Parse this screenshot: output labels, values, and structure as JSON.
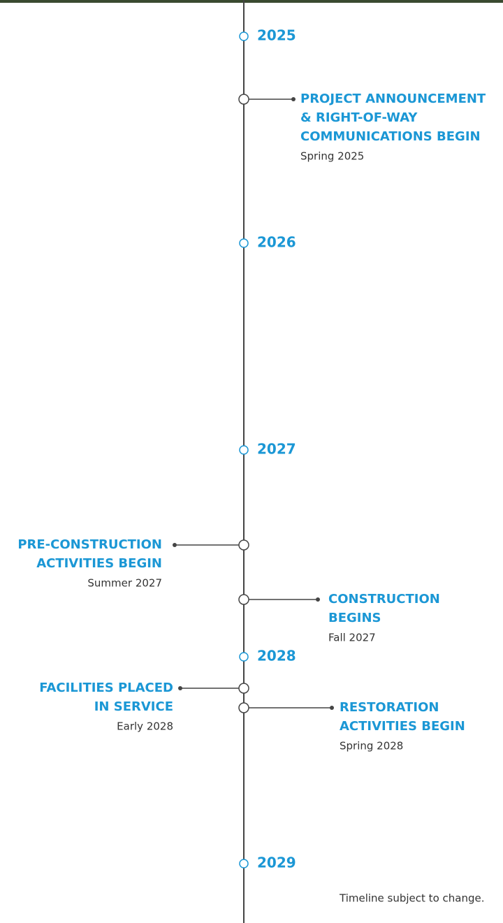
{
  "timeline": {
    "years": [
      "2025",
      "2026",
      "2027",
      "2028",
      "2029"
    ],
    "events": [
      {
        "title": [
          "PROJECT ANNOUNCEMENT",
          "& RIGHT-OF-WAY",
          "COMMUNICATIONS BEGIN"
        ],
        "date": "Spring 2025"
      },
      {
        "title": [
          "PRE-CONSTRUCTION",
          "ACTIVITIES BEGIN"
        ],
        "date": "Summer 2027"
      },
      {
        "title": [
          "CONSTRUCTION",
          "BEGINS"
        ],
        "date": "Fall 2027"
      },
      {
        "title": [
          "FACILITIES PLACED",
          "IN SERVICE"
        ],
        "date": "Early 2028"
      },
      {
        "title": [
          "RESTORATION",
          "ACTIVITIES BEGIN"
        ],
        "date": "Spring 2028"
      }
    ],
    "note": "Timeline subject to change."
  }
}
